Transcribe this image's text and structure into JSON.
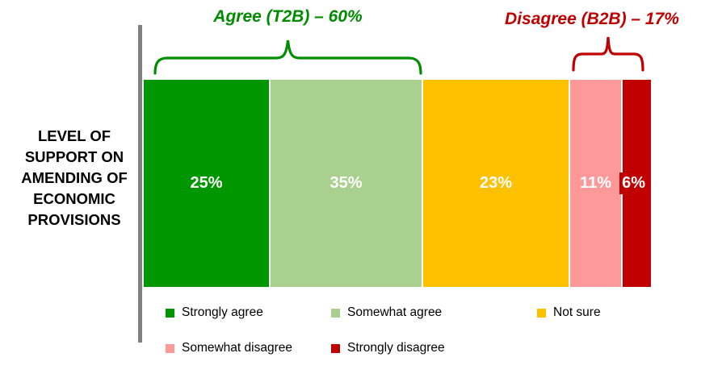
{
  "chart_data": {
    "type": "bar",
    "subtype": "horizontal-100pct-stacked",
    "category_label": "LEVEL OF SUPPORT ON AMENDING OF ECONOMIC PROVISIONS",
    "category_label_lines": [
      "LEVEL OF",
      "SUPPORT ON",
      "AMENDING OF",
      "ECONOMIC",
      "PROVISIONS"
    ],
    "series": [
      {
        "name": "Strongly agree",
        "value": 25,
        "label": "25%",
        "color": "#009600"
      },
      {
        "name": "Somewhat agree",
        "value": 35,
        "label": "35%",
        "color": "#A9D08E"
      },
      {
        "name": "Not sure",
        "value": 23,
        "label": "23%",
        "color": "#FFC000"
      },
      {
        "name": "Somewhat disagree",
        "value": 11,
        "label": "11%",
        "color": "#FF9999"
      },
      {
        "name": "Strongly disagree",
        "value": 6,
        "label": "6%",
        "color": "#C00000",
        "label_chip": true
      }
    ],
    "annotations": [
      {
        "id": "agree",
        "text": "Agree (T2B) – 60%",
        "group": "T2B",
        "value": 60,
        "color": "#008C00",
        "spans": [
          "Strongly agree",
          "Somewhat agree"
        ]
      },
      {
        "id": "disagree",
        "text": "Disagree (B2B) – 17%",
        "group": "B2B",
        "value": 17,
        "color": "#C00000",
        "spans": [
          "Somewhat disagree",
          "Strongly disagree"
        ]
      }
    ],
    "value_label_color": "#FFFFFF",
    "axis_color": "#808080",
    "legend_position": "bottom",
    "legend_rows": [
      [
        "Strongly agree",
        "Somewhat agree",
        "Not sure"
      ],
      [
        "Somewhat disagree",
        "Strongly disagree"
      ]
    ]
  },
  "layout": {
    "segment_display_widths_pct": [
      25.0,
      30.1,
      29.0,
      10.35,
      5.55
    ]
  }
}
